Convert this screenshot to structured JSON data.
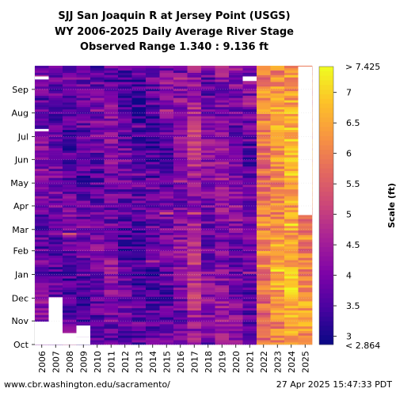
{
  "chart_data": {
    "type": "heatmap",
    "title_lines": [
      "SJJ San Joaquin R at Jersey Point (USGS)",
      "WY 2006-2025 Daily Average River Stage",
      "Observed Range 1.340 : 9.136 ft"
    ],
    "x": [
      "2006",
      "2007",
      "2008",
      "2009",
      "2010",
      "2011",
      "2012",
      "2013",
      "2014",
      "2015",
      "2016",
      "2017",
      "2018",
      "2019",
      "2020",
      "2021",
      "2022",
      "2023",
      "2024",
      "2025"
    ],
    "y_months": [
      "Oct",
      "Nov",
      "Dec",
      "Jan",
      "Feb",
      "Mar",
      "Apr",
      "May",
      "Jun",
      "Jul",
      "Aug",
      "Sep"
    ],
    "colorbar": {
      "label": "Scale (ft)",
      "min": 2.864,
      "max": 7.425,
      "top_label": "> 7.425",
      "bottom_label": "< 2.864",
      "ticks": [
        3,
        3.5,
        4,
        4.5,
        5,
        5.5,
        6,
        6.5,
        7
      ],
      "tick_labels": [
        "3",
        "3.5",
        "4",
        "4.5",
        "5",
        "5.5",
        "6",
        "6.5",
        "7"
      ],
      "colormap": "plasma"
    },
    "year_mean_stage_ft": [
      3.9,
      3.8,
      3.7,
      3.7,
      3.8,
      4.0,
      3.7,
      3.5,
      3.6,
      3.8,
      4.0,
      4.6,
      4.0,
      4.2,
      4.0,
      3.8,
      5.9,
      6.3,
      6.6,
      6.1
    ],
    "missing": [
      {
        "year": "2006",
        "from_day": 0,
        "to_day": 30
      },
      {
        "year": "2006",
        "from_day": 348,
        "to_day": 352
      },
      {
        "year": "2006",
        "from_day": 280,
        "to_day": 283
      },
      {
        "year": "2007",
        "from_day": 0,
        "to_day": 2
      },
      {
        "year": "2007",
        "from_day": 2,
        "to_day": 62
      },
      {
        "year": "2007",
        "from_day": 2,
        "to_day": 1
      },
      {
        "year": "2008",
        "from_day": 0,
        "to_day": 15
      },
      {
        "year": "2009",
        "from_day": 0,
        "to_day": 10
      },
      {
        "year": "2009",
        "from_day": 10,
        "to_day": 25
      },
      {
        "year": "2021",
        "from_day": 346,
        "to_day": 352
      },
      {
        "year": "2025",
        "from_day": 170,
        "to_day": 365
      },
      {
        "year": "2025",
        "from_day": 196,
        "to_day": 365
      }
    ]
  },
  "footer": {
    "left": "www.cbr.washington.edu/sacramento/",
    "right": "27 Apr 2025 15:47:33 PDT"
  }
}
